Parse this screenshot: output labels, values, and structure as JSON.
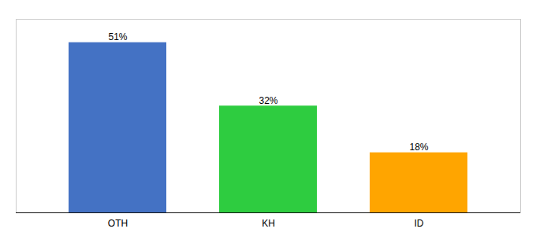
{
  "chart_data": {
    "type": "bar",
    "categories": [
      "OTH",
      "KH",
      "ID"
    ],
    "values": [
      51,
      32,
      18
    ],
    "value_labels": [
      "51%",
      "32%",
      "18%"
    ],
    "colors": [
      "#4472C4",
      "#2ECC40",
      "#FFA500"
    ],
    "ylim": [
      0,
      58
    ],
    "data_labels": true,
    "tick_labels": "x",
    "grid": false
  }
}
